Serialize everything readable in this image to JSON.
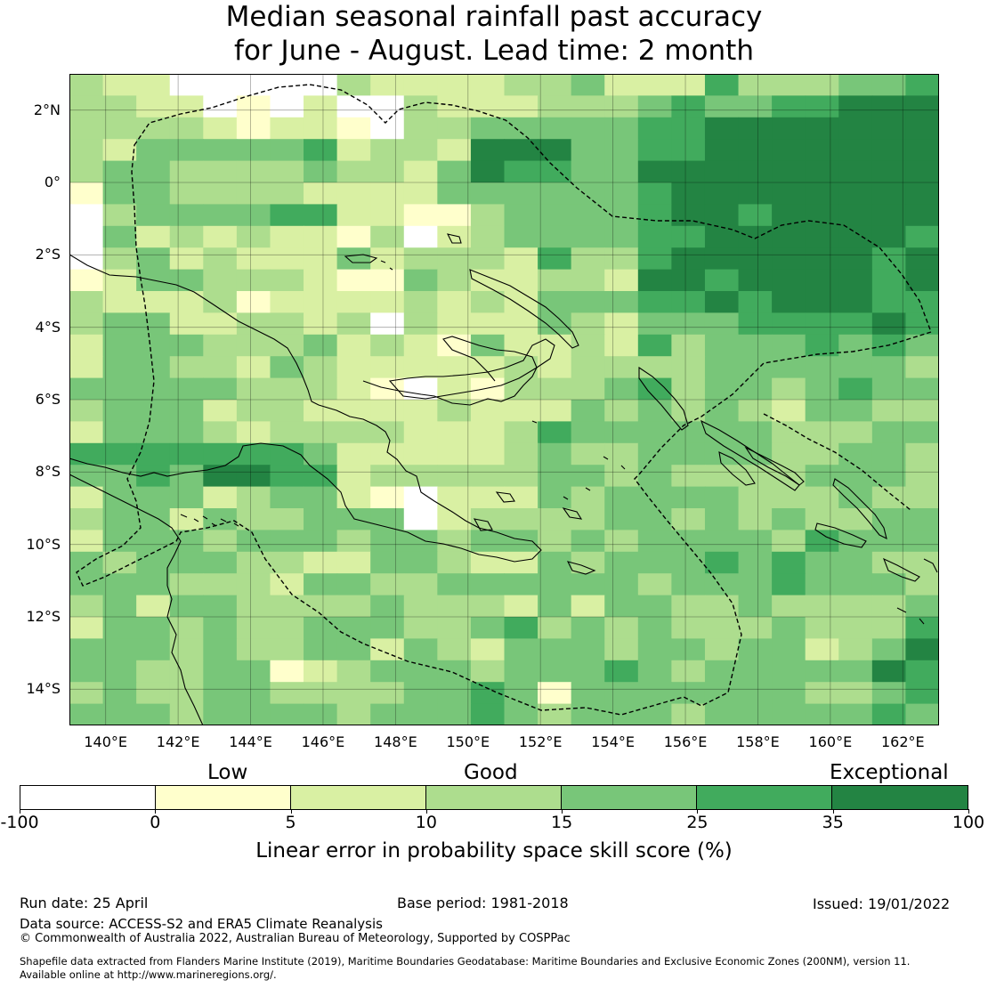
{
  "title": {
    "line1": "Median seasonal rainfall past accuracy",
    "line2": "for June - August. Lead time: 2 month"
  },
  "map": {
    "lon_range": [
      139,
      163
    ],
    "lat_range": [
      -15,
      3
    ],
    "lat_labels": [
      "2°N",
      "0°",
      "2°S",
      "4°S",
      "6°S",
      "8°S",
      "10°S",
      "12°S",
      "14°S"
    ],
    "lon_labels": [
      "140°E",
      "142°E",
      "144°E",
      "146°E",
      "148°E",
      "150°E",
      "152°E",
      "154°E",
      "156°E",
      "158°E",
      "160°E",
      "162°E"
    ],
    "grid_lines": true,
    "coastline_color": "#000000",
    "boundary_style": "dashed",
    "skill_grid_legend": "0=white(<0) 1=0-5 2=5-10 3=10-15 4=15-25 5=25-35 6=35-100",
    "skill_grid_rows": [
      "32200000322223342225333445",
      "33220102003222333454455666",
      "33332122103344444556666666",
      "32444445233266644556666666",
      "34433334332465544666666666",
      "14433332222444444566666666",
      "03444455221134444566566666",
      "04232322130234444556666665",
      "03423222423332533566666656",
      "12443332114322332665666656",
      "32223122223232444556566655",
      "34422332303222432444555565",
      "24443334232142232534445454",
      "24433243222223233334444443",
      "44444333210213334534434544",
      "34442332222322243434324433",
      "24443233332223544444433344",
      "55555554222223433444433443",
      "44546655233333443433334443",
      "24442344210222434444333433",
      "34424334440233334434343344",
      "24443444344344343444435444",
      "43444332244322434445454433",
      "44433324433444444344454443",
      "34244333343332424433433334",
      "24434334443345343433343335",
      "44434334424324443443442346",
      "44334412344434445434444465",
      "34334433334454144444443345",
      "44434444344454344434444454"
    ]
  },
  "colorbar": {
    "category_labels": [
      "Low",
      "Good",
      "Exceptional"
    ],
    "tick_labels": [
      "-100",
      "0",
      "5",
      "10",
      "15",
      "25",
      "35",
      "100"
    ],
    "colors": [
      "#ffffff",
      "#ffffcc",
      "#d9f0a3",
      "#addd8e",
      "#78c679",
      "#41ab5d",
      "#238443"
    ],
    "title": "Linear error in probability space skill score (%)"
  },
  "footer": {
    "run_date": "Run date: 25 April",
    "base_period": "Base period: 1981-2018",
    "issued": "Issued: 19/01/2022",
    "data_source": "Data source: ACCESS-S2 and ERA5 Climate Reanalysis",
    "copyright": "© Commonwealth of Australia 2022, Australian Bureau of Meteorology, Supported by COSPPac",
    "shapefile_line1": "Shapefile data extracted from Flanders Marine Institute (2019), Maritime Boundaries Geodatabase: Maritime Boundaries and Exclusive Economic Zones (200NM), version 11.",
    "shapefile_line2": "Available online at http://www.marineregions.org/."
  }
}
